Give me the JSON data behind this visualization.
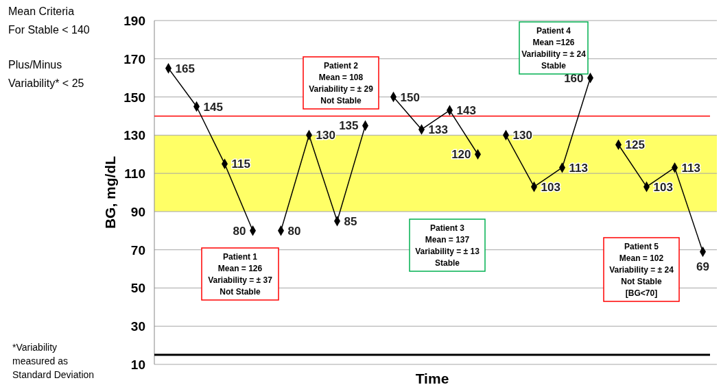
{
  "chart_data": {
    "type": "line",
    "xlabel": "Time",
    "ylabel": "BG, mg/dL",
    "categories": [
      null,
      null,
      null,
      null,
      null,
      null,
      null,
      null,
      null,
      null,
      null,
      null,
      null,
      null,
      null,
      null,
      null,
      null,
      null,
      null
    ],
    "series": [
      {
        "color": "#000000",
        "values": [
          165,
          145,
          115,
          80,
          null,
          null,
          null,
          null,
          null,
          null,
          null,
          null,
          null,
          null,
          null,
          null,
          null,
          null,
          null,
          null
        ]
      },
      {
        "color": "#000000",
        "values": [
          null,
          null,
          null,
          null,
          80,
          130,
          85,
          135,
          null,
          null,
          null,
          null,
          null,
          null,
          null,
          null,
          null,
          null,
          null,
          null
        ]
      },
      {
        "color": "#000000",
        "values": [
          null,
          null,
          null,
          null,
          null,
          null,
          null,
          null,
          150,
          133,
          143,
          120,
          null,
          null,
          null,
          null,
          null,
          null,
          null,
          null
        ]
      },
      {
        "color": "#000000",
        "values": [
          null,
          null,
          null,
          null,
          null,
          null,
          null,
          null,
          null,
          null,
          null,
          null,
          130,
          103,
          113,
          160,
          null,
          null,
          null,
          null
        ]
      },
      {
        "color": "#000000",
        "values": [
          null,
          null,
          null,
          null,
          null,
          null,
          null,
          null,
          null,
          null,
          null,
          null,
          null,
          null,
          null,
          null,
          125,
          103,
          113,
          69
        ]
      }
    ],
    "ylim": [
      10,
      190
    ],
    "yticks": [
      10,
      30,
      50,
      70,
      90,
      110,
      130,
      150,
      170,
      190
    ],
    "grid": "y",
    "marker": "diamond",
    "line_style": "solid",
    "data_labels": true,
    "ref_lines": [
      {
        "axis": "y",
        "value": 140,
        "color": "#ff0000"
      },
      {
        "axis": "y",
        "value": 15,
        "color": "#000000"
      }
    ],
    "bands": [
      {
        "axis": "y",
        "from": 90,
        "to": 130,
        "color": "#ffff66"
      }
    ],
    "annotations": [
      "Patient 1\nMean = 126\nVariability =  ± 37\nNot Stable",
      "Patient 2\nMean = 108\nVariability =  ± 29\nNot Stable",
      "Patient 3\nMean = 137\nVariability = ± 13\nStable",
      "Patient 4\nMean =126\nVariability = ± 24\nStable",
      "Patient 5\nMean = 102\nVariability = ± 24\nNot Stable\n[BG<70]",
      "Mean Criteria\nFor Stable < 140",
      "Plus/Minus\nVariability* < 25",
      "*Variability\nmeasured as\nStandard Deviation"
    ]
  }
}
